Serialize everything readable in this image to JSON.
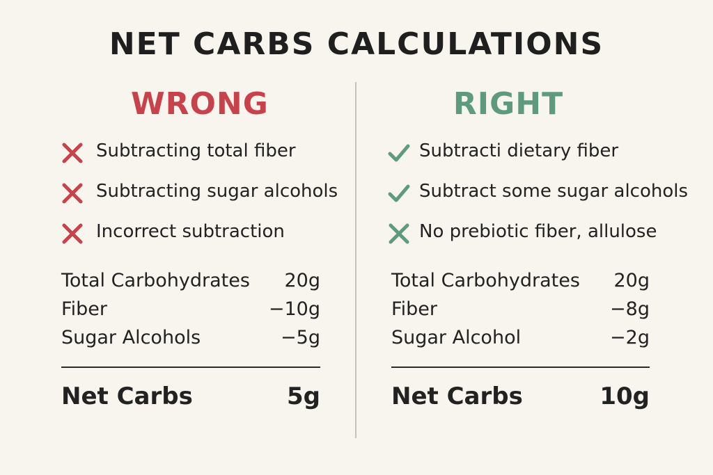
{
  "title": "NET CARBS CALCULATIONS",
  "columns": [
    {
      "heading": "WRONG",
      "items": [
        "Subtracting total fiber",
        "Subtracting sugar alcohols",
        "Incorrect subtraction"
      ],
      "rows": [
        [
          "Total Carbohydrates",
          "20g"
        ],
        [
          "Fiber",
          "−10g"
        ],
        [
          "Sugar Alcohols",
          "−5g"
        ]
      ],
      "total": {
        "label": "Net Carbs",
        "value": "5g"
      }
    },
    {
      "heading": "RIGHT",
      "items": [
        "Subtracti dietary fiber",
        "Subtract some sugar alcohols",
        "No prebiotic fiber, allulose"
      ],
      "rows": [
        [
          "Total Carbohydrates",
          "20g"
        ],
        [
          "Fiber",
          "−8g"
        ],
        [
          "Sugar Alcohol",
          "−2g"
        ]
      ],
      "total": {
        "label": "Net Carbs",
        "value": "10g"
      }
    }
  ]
}
